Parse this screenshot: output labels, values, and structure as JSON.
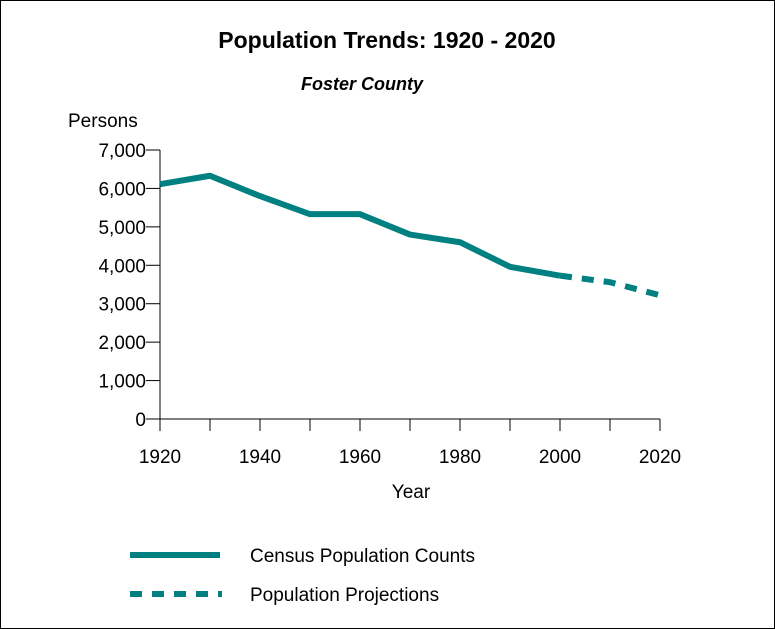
{
  "chart_data": {
    "type": "line",
    "title": "Population Trends: 1920 - 2020",
    "subtitle": "Foster County",
    "ylabel": "Persons",
    "xlabel": "Year",
    "xlim": [
      1920,
      2020
    ],
    "ylim": [
      0,
      7000
    ],
    "x_ticks": [
      1920,
      1940,
      1960,
      1980,
      2000,
      2020
    ],
    "x_tick_labels": [
      "1920",
      "1940",
      "1960",
      "1980",
      "2000",
      "2020"
    ],
    "y_ticks": [
      0,
      1000,
      2000,
      3000,
      4000,
      5000,
      6000,
      7000
    ],
    "y_tick_labels": [
      "0",
      "1,000",
      "2,000",
      "3,000",
      "4,000",
      "5,000",
      "6,000",
      "7,000"
    ],
    "grid": false,
    "legend_position": "bottom",
    "series": [
      {
        "name": "Census Population Counts",
        "style": "solid",
        "color": "#008080",
        "x": [
          1920,
          1930,
          1940,
          1950,
          1960,
          1970,
          1980,
          1990,
          2000
        ],
        "y": [
          6110,
          6330,
          5800,
          5330,
          5330,
          4800,
          4600,
          3960,
          3730
        ]
      },
      {
        "name": "Population Projections",
        "style": "dashed",
        "color": "#008080",
        "x": [
          2000,
          2010,
          2020
        ],
        "y": [
          3730,
          3560,
          3220
        ]
      }
    ]
  }
}
